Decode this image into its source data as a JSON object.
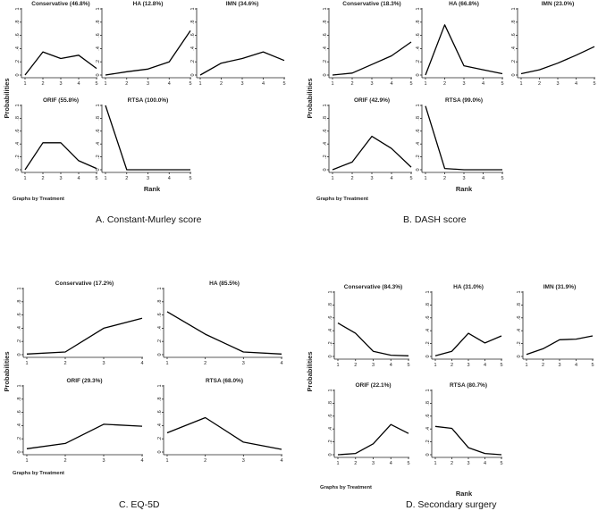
{
  "figure": {
    "axis_labels": {
      "y": "Probabilities",
      "x": "Rank"
    },
    "note": "Graphs by Treatment"
  },
  "chart_data": [
    {
      "type": "line",
      "caption": "A. Constant-Murley score",
      "xlabel": "Rank",
      "ylabel": "Probabilities",
      "ylim": [
        0,
        1
      ],
      "x": [
        1,
        2,
        3,
        4,
        5
      ],
      "y_ticks": [
        "0",
        ".2",
        ".4",
        ".6",
        ".8",
        "1"
      ],
      "series": [
        {
          "name": "Conservative",
          "label": "Conservative (46.8%)",
          "values": [
            0.0,
            0.35,
            0.25,
            0.3,
            0.1
          ]
        },
        {
          "name": "HA",
          "label": "HA (12.8%)",
          "values": [
            0.0,
            0.05,
            0.09,
            0.2,
            0.67
          ]
        },
        {
          "name": "IMN",
          "label": "IMN (34.6%)",
          "values": [
            0.0,
            0.18,
            0.25,
            0.35,
            0.22
          ]
        },
        {
          "name": "ORIF",
          "label": "ORIF (55.8%)",
          "values": [
            0.0,
            0.42,
            0.42,
            0.14,
            0.02
          ]
        },
        {
          "name": "RTSA",
          "label": "RTSA (100.0%)",
          "values": [
            1.0,
            0.0,
            0.0,
            0.0,
            0.0
          ]
        }
      ]
    },
    {
      "type": "line",
      "caption": "B. DASH score",
      "xlabel": "Rank",
      "ylabel": "Probabilities",
      "ylim": [
        0,
        1
      ],
      "x": [
        1,
        2,
        3,
        4,
        5
      ],
      "y_ticks": [
        "0",
        ".2",
        ".4",
        ".6",
        ".8",
        "1"
      ],
      "series": [
        {
          "name": "Conservative",
          "label": "Conservative (18.3%)",
          "values": [
            0.0,
            0.03,
            0.16,
            0.29,
            0.5
          ]
        },
        {
          "name": "HA",
          "label": "HA (66.8%)",
          "values": [
            0.0,
            0.76,
            0.14,
            0.08,
            0.02
          ]
        },
        {
          "name": "IMN",
          "label": "IMN (23.0%)",
          "values": [
            0.02,
            0.08,
            0.18,
            0.3,
            0.43
          ]
        },
        {
          "name": "ORIF",
          "label": "ORIF (42.9%)",
          "values": [
            0.0,
            0.12,
            0.52,
            0.33,
            0.04
          ]
        },
        {
          "name": "RTSA",
          "label": "RTSA (99.0%)",
          "values": [
            0.99,
            0.02,
            0.0,
            0.0,
            0.0
          ]
        }
      ]
    },
    {
      "type": "line",
      "caption": "C. EQ-5D",
      "xlabel": "Rank",
      "ylabel": "Probabilities",
      "ylim": [
        0,
        1
      ],
      "x": [
        1,
        2,
        3,
        4
      ],
      "y_ticks": [
        "0",
        ".2",
        ".4",
        ".6",
        ".8",
        "1"
      ],
      "series": [
        {
          "name": "Conservative",
          "label": "Conservative (17.2%)",
          "values": [
            0.01,
            0.04,
            0.4,
            0.55
          ]
        },
        {
          "name": "HA",
          "label": "HA (85.5%)",
          "values": [
            0.65,
            0.31,
            0.04,
            0.01
          ]
        },
        {
          "name": "ORIF",
          "label": "ORIF (29.3%)",
          "values": [
            0.05,
            0.13,
            0.42,
            0.39
          ]
        },
        {
          "name": "RTSA",
          "label": "RTSA (68.0%)",
          "values": [
            0.29,
            0.52,
            0.15,
            0.04
          ]
        }
      ]
    },
    {
      "type": "line",
      "caption": "D. Secondary surgery",
      "xlabel": "Rank",
      "ylabel": "Probabilities",
      "ylim": [
        0,
        1
      ],
      "x": [
        1,
        2,
        3,
        4,
        5
      ],
      "y_ticks": [
        "0",
        ".2",
        ".4",
        ".6",
        ".8",
        "1"
      ],
      "series": [
        {
          "name": "Conservative",
          "label": "Conservative (84.3%)",
          "values": [
            0.52,
            0.36,
            0.08,
            0.02,
            0.01
          ]
        },
        {
          "name": "HA",
          "label": "HA (31.0%)",
          "values": [
            0.01,
            0.08,
            0.36,
            0.21,
            0.32
          ]
        },
        {
          "name": "IMN",
          "label": "IMN (31.9%)",
          "values": [
            0.03,
            0.12,
            0.26,
            0.27,
            0.32
          ]
        },
        {
          "name": "ORIF",
          "label": "ORIF (22.1%)",
          "values": [
            0.0,
            0.02,
            0.17,
            0.47,
            0.33
          ]
        },
        {
          "name": "RTSA",
          "label": "RTSA (80.7%)",
          "values": [
            0.44,
            0.41,
            0.11,
            0.02,
            0.0
          ]
        }
      ]
    }
  ]
}
